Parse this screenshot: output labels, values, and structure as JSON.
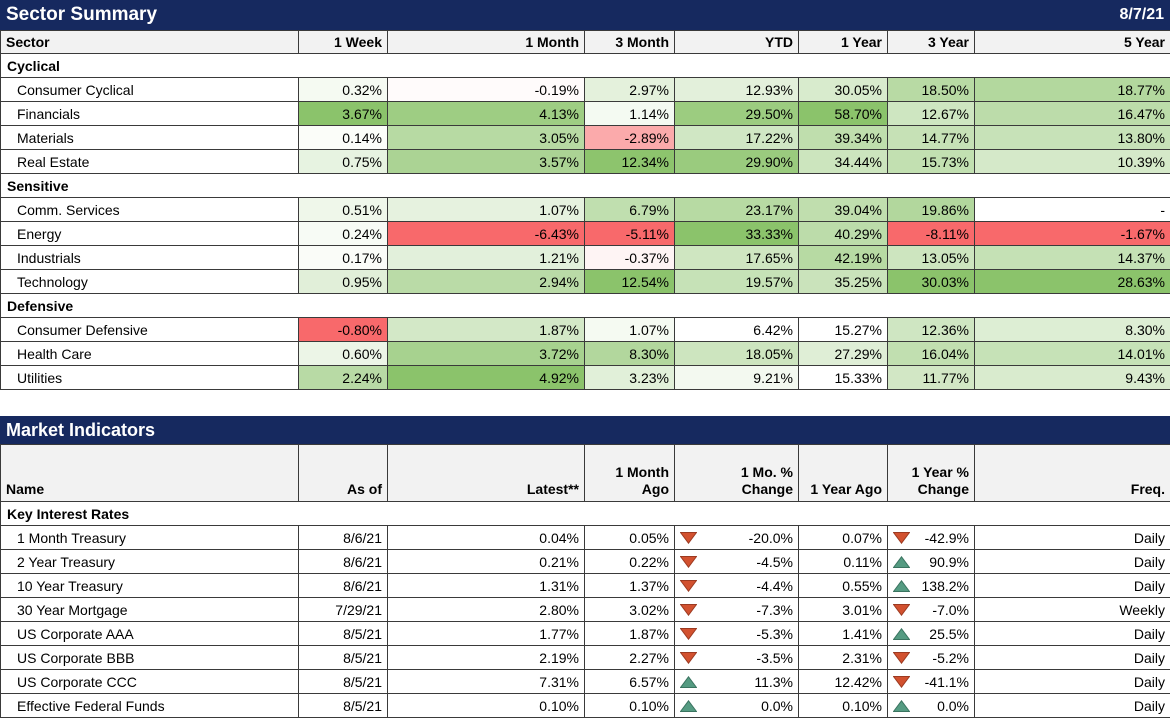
{
  "heatmap": {
    "green": "#8BC36B",
    "red": "#F8696B",
    "neutral": "#FFFFFF"
  },
  "colors": {
    "title_bg": "#16295F",
    "title_fg": "#FFFFFF",
    "header_bg": "#F2F2F2",
    "border": "#3A3A3A",
    "up_triangle": "#559B82",
    "up_triangle_border": "#3A7460",
    "down_triangle": "#D2512F",
    "down_triangle_border": "#9C3A21"
  },
  "sector_summary": {
    "title": "Sector Summary",
    "date": "8/7/21",
    "columns": [
      "Sector",
      "1 Week",
      "1 Month",
      "3 Month",
      "YTD",
      "1 Year",
      "3 Year",
      "5 Year"
    ],
    "groups": [
      {
        "label": "Cyclical",
        "rows": [
          {
            "name": "Consumer Cyclical",
            "values": [
              "0.32%",
              "-0.19%",
              "2.97%",
              "12.93%",
              "30.05%",
              "18.50%",
              "18.77%"
            ]
          },
          {
            "name": "Financials",
            "values": [
              "3.67%",
              "4.13%",
              "1.14%",
              "29.50%",
              "58.70%",
              "12.67%",
              "16.47%"
            ]
          },
          {
            "name": "Materials",
            "values": [
              "0.14%",
              "3.05%",
              "-2.89%",
              "17.22%",
              "39.34%",
              "14.77%",
              "13.80%"
            ]
          },
          {
            "name": "Real Estate",
            "values": [
              "0.75%",
              "3.57%",
              "12.34%",
              "29.90%",
              "34.44%",
              "15.73%",
              "10.39%"
            ]
          }
        ]
      },
      {
        "label": "Sensitive",
        "rows": [
          {
            "name": "Comm. Services",
            "values": [
              "0.51%",
              "1.07%",
              "6.79%",
              "23.17%",
              "39.04%",
              "19.86%",
              "-"
            ]
          },
          {
            "name": "Energy",
            "values": [
              "0.24%",
              "-6.43%",
              "-5.11%",
              "33.33%",
              "40.29%",
              "-8.11%",
              "-1.67%"
            ]
          },
          {
            "name": "Industrials",
            "values": [
              "0.17%",
              "1.21%",
              "-0.37%",
              "17.65%",
              "42.19%",
              "13.05%",
              "14.37%"
            ]
          },
          {
            "name": "Technology",
            "values": [
              "0.95%",
              "2.94%",
              "12.54%",
              "19.57%",
              "35.25%",
              "30.03%",
              "28.63%"
            ]
          }
        ]
      },
      {
        "label": "Defensive",
        "rows": [
          {
            "name": "Consumer Defensive",
            "values": [
              "-0.80%",
              "1.87%",
              "1.07%",
              "6.42%",
              "15.27%",
              "12.36%",
              "8.30%"
            ]
          },
          {
            "name": "Health Care",
            "values": [
              "0.60%",
              "3.72%",
              "8.30%",
              "18.05%",
              "27.29%",
              "16.04%",
              "14.01%"
            ]
          },
          {
            "name": "Utilities",
            "values": [
              "2.24%",
              "4.92%",
              "3.23%",
              "9.21%",
              "15.33%",
              "11.77%",
              "9.43%"
            ]
          }
        ]
      }
    ]
  },
  "market_indicators": {
    "title": "Market Indicators",
    "columns": [
      "Name",
      "As of",
      "Latest**",
      "1 Month\nAgo",
      "1 Mo. %\nChange",
      "1 Year Ago",
      "1 Year %\nChange",
      "Freq."
    ],
    "groups": [
      {
        "label": "Key Interest Rates",
        "rows": [
          {
            "name": "1 Month Treasury",
            "as_of": "8/6/21",
            "latest": "0.04%",
            "month_ago": "0.05%",
            "mo_dir": "down",
            "mo_change": "-20.0%",
            "year_ago": "0.07%",
            "yr_dir": "down",
            "yr_change": "-42.9%",
            "freq": "Daily"
          },
          {
            "name": "2 Year Treasury",
            "as_of": "8/6/21",
            "latest": "0.21%",
            "month_ago": "0.22%",
            "mo_dir": "down",
            "mo_change": "-4.5%",
            "year_ago": "0.11%",
            "yr_dir": "up",
            "yr_change": "90.9%",
            "freq": "Daily"
          },
          {
            "name": "10 Year Treasury",
            "as_of": "8/6/21",
            "latest": "1.31%",
            "month_ago": "1.37%",
            "mo_dir": "down",
            "mo_change": "-4.4%",
            "year_ago": "0.55%",
            "yr_dir": "up",
            "yr_change": "138.2%",
            "freq": "Daily"
          },
          {
            "name": "30 Year Mortgage",
            "as_of": "7/29/21",
            "latest": "2.80%",
            "month_ago": "3.02%",
            "mo_dir": "down",
            "mo_change": "-7.3%",
            "year_ago": "3.01%",
            "yr_dir": "down",
            "yr_change": "-7.0%",
            "freq": "Weekly"
          },
          {
            "name": "US Corporate AAA",
            "as_of": "8/5/21",
            "latest": "1.77%",
            "month_ago": "1.87%",
            "mo_dir": "down",
            "mo_change": "-5.3%",
            "year_ago": "1.41%",
            "yr_dir": "up",
            "yr_change": "25.5%",
            "freq": "Daily"
          },
          {
            "name": "US Corporate BBB",
            "as_of": "8/5/21",
            "latest": "2.19%",
            "month_ago": "2.27%",
            "mo_dir": "down",
            "mo_change": "-3.5%",
            "year_ago": "2.31%",
            "yr_dir": "down",
            "yr_change": "-5.2%",
            "freq": "Daily"
          },
          {
            "name": "US Corporate CCC",
            "as_of": "8/5/21",
            "latest": "7.31%",
            "month_ago": "6.57%",
            "mo_dir": "up",
            "mo_change": "11.3%",
            "year_ago": "12.42%",
            "yr_dir": "down",
            "yr_change": "-41.1%",
            "freq": "Daily"
          },
          {
            "name": "Effective Federal Funds",
            "as_of": "8/5/21",
            "latest": "0.10%",
            "month_ago": "0.10%",
            "mo_dir": "up",
            "mo_change": "0.0%",
            "year_ago": "0.10%",
            "yr_dir": "up",
            "yr_change": "0.0%",
            "freq": "Daily"
          }
        ]
      }
    ]
  }
}
